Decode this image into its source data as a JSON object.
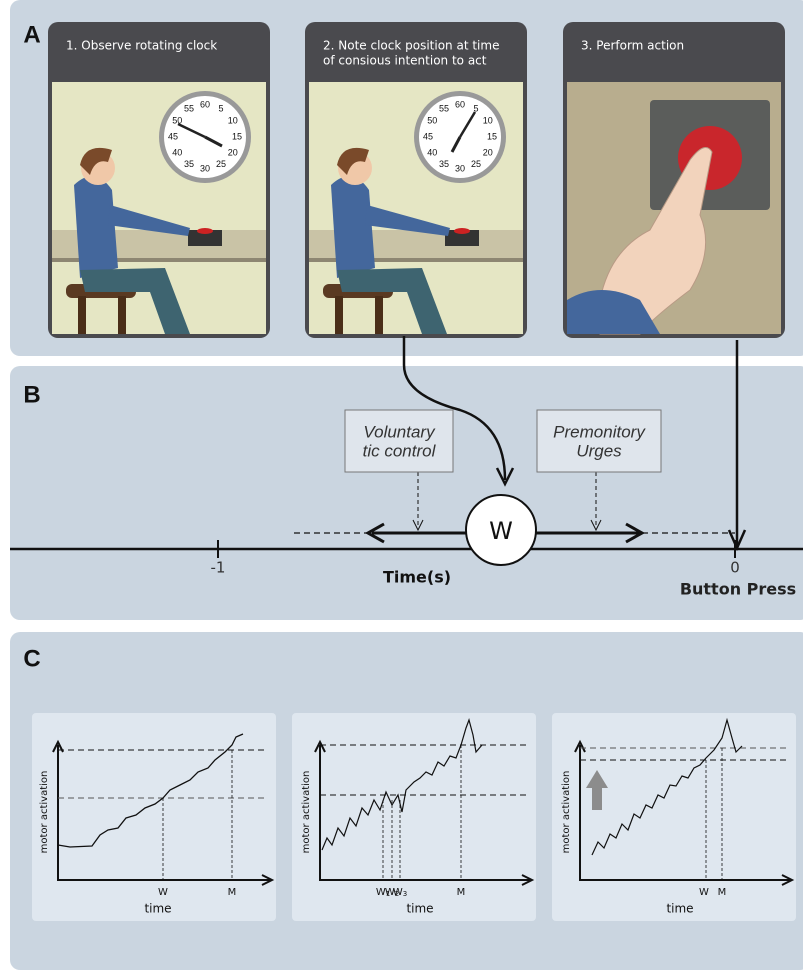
{
  "panel_a": {
    "label": "A",
    "steps": [
      [
        "1. Observe rotating clock"
      ],
      [
        "2. Note clock position at time",
        "of consious intention to act"
      ],
      [
        "3. Perform action"
      ]
    ],
    "clock_numerals": [
      "60",
      "5",
      "10",
      "15",
      "20",
      "25",
      "30",
      "35",
      "40",
      "45",
      "50",
      "55"
    ]
  },
  "panel_b": {
    "label": "B",
    "boxes": [
      [
        "Voluntary",
        "tic control"
      ],
      [
        "Premonitory",
        "Urges"
      ]
    ],
    "w_marker": "W",
    "ticks": [
      -1,
      0
    ],
    "axis_label": "Time(s)",
    "event_label": "Button Press"
  },
  "panel_c": {
    "label": "C",
    "plots": [
      {
        "y_label": "motor activation",
        "x_label": "time",
        "markers": [
          {
            "base": "W"
          },
          {
            "base": "M"
          }
        ]
      },
      {
        "y_label": "motor activation",
        "x_label": "time",
        "markers": [
          {
            "base": "W",
            "sub": "1"
          },
          {
            "base": "W",
            "sub": "2"
          },
          {
            "base": "W",
            "sub": "3"
          },
          {
            "base": "M"
          }
        ]
      },
      {
        "y_label": "motor activation",
        "x_label": "time",
        "markers": [
          {
            "base": "W"
          },
          {
            "base": "M"
          }
        ]
      }
    ]
  }
}
